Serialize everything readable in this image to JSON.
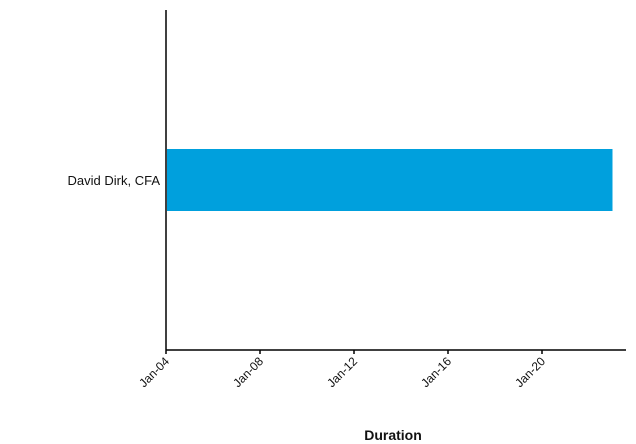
{
  "chart_data": {
    "type": "bar",
    "orientation": "horizontal",
    "categories": [
      "David Dirk, CFA"
    ],
    "series": [
      {
        "values": [
          {
            "start": "Jan-04",
            "end": "Jan-23"
          }
        ],
        "color": "#00A0DD"
      }
    ],
    "x_ticks": [
      "Jan-04",
      "Jan-08",
      "Jan-12",
      "Jan-16",
      "Jan-20"
    ],
    "xlabel": "Duration",
    "ylabel": "",
    "title": "",
    "grid": false,
    "legend": "none"
  }
}
